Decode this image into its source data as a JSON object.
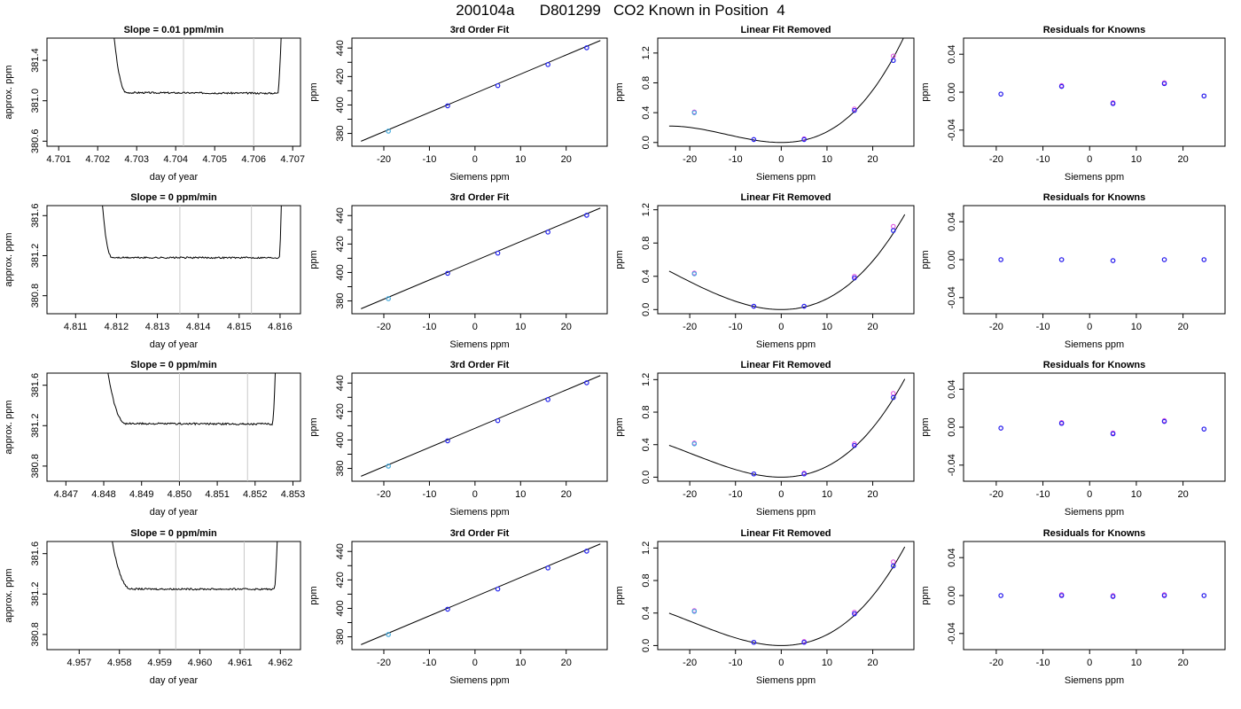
{
  "main_title": "200104a      D801299   CO2 Known in Position  4",
  "colors": {
    "frame": "#000000",
    "trace": "#000000",
    "window_lines": "#c8c8c8",
    "point_blue": "#2222ee",
    "point_magenta": "#dd44dd",
    "point_cyan": "#44aadd"
  },
  "chart_data": [
    {
      "type": "line",
      "row": 1,
      "title": "Slope =  0.01  ppm/min",
      "xlabel": "day of year",
      "ylabel": "approx. ppm",
      "xlim": [
        4.7007,
        4.7072
      ],
      "ylim": [
        380.55,
        381.62
      ],
      "xticks": [
        "4.701",
        "4.702",
        "4.703",
        "4.704",
        "4.705",
        "4.706",
        "4.707"
      ],
      "yticks": [
        "380.6",
        "381.0",
        "381.4"
      ],
      "vlines": [
        4.7042,
        4.706
      ],
      "trace": {
        "x_start": 4.7021,
        "x_rise": 4.70235,
        "x_plateau": 4.70275,
        "x_drop": 4.70662,
        "x_end": 4.70673,
        "plateau": 381.08,
        "slope": -0.006,
        "noise": 0.008
      }
    },
    {
      "type": "scatter",
      "row": 1,
      "title": "3rd Order Fit",
      "xlabel": "Siemens ppm",
      "ylabel": "ppm",
      "xlim": [
        -27,
        29
      ],
      "ylim": [
        371,
        447
      ],
      "xticks": [
        "-20",
        "-10",
        "0",
        "10",
        "20"
      ],
      "yticks": [
        "380",
        "400",
        "420",
        "440"
      ],
      "points": {
        "x": [
          -19,
          -6,
          5,
          16,
          24.5
        ],
        "y": [
          381.6,
          399.4,
          413.6,
          428.4,
          440.2
        ]
      },
      "fit_line": {
        "x": [
          -25,
          27.5
        ],
        "y": [
          374.5,
          445.3
        ]
      }
    },
    {
      "type": "scatter",
      "row": 1,
      "title": "Linear Fit Removed",
      "xlabel": "Siemens ppm",
      "ylabel": "ppm",
      "xlim": [
        -27,
        29
      ],
      "ylim": [
        -0.05,
        1.4
      ],
      "xticks": [
        "-20",
        "-10",
        "0",
        "10",
        "20"
      ],
      "yticks": [
        "0.0",
        "0.4",
        "0.8",
        "1.2"
      ],
      "points": {
        "x": [
          -19,
          -6,
          5,
          16,
          24.5
        ],
        "y": [
          0.4,
          0.04,
          0.04,
          0.43,
          1.1
        ]
      },
      "magenta_points": {
        "x": [
          -19,
          -6,
          5,
          16,
          24.5
        ],
        "y": [
          0.41,
          0.04,
          0.05,
          0.45,
          1.16
        ]
      },
      "curve": {
        "coef": 0.00113,
        "cubic": 3.12e-05,
        "x_range": [
          -24.5,
          27
        ]
      }
    },
    {
      "type": "scatter",
      "row": 1,
      "title": "Residuals for Knowns",
      "xlabel": "Siemens ppm",
      "ylabel": "ppm",
      "xlim": [
        -27,
        29
      ],
      "ylim": [
        -0.057,
        0.057
      ],
      "xticks": [
        "-20",
        "-10",
        "0",
        "10",
        "20"
      ],
      "yticks": [
        "-0.04",
        "0.00",
        "0.04"
      ],
      "points": {
        "x": [
          -19,
          -6,
          5,
          16,
          24.5
        ],
        "y": [
          -0.002,
          0.006,
          -0.012,
          0.009,
          -0.004
        ]
      },
      "magenta_points": {
        "x": [
          -19,
          -6,
          5,
          16,
          24.5
        ],
        "y": [
          -0.002,
          0.007,
          -0.011,
          0.01,
          -0.004
        ]
      }
    },
    {
      "type": "line",
      "row": 2,
      "title": "Slope =  0  ppm/min",
      "xlabel": "day of year",
      "ylabel": "approx. ppm",
      "xlim": [
        4.8103,
        4.8165
      ],
      "ylim": [
        380.62,
        381.7
      ],
      "xticks": [
        "4.811",
        "4.812",
        "4.813",
        "4.814",
        "4.815",
        "4.816"
      ],
      "yticks": [
        "380.8",
        "381.2",
        "381.6"
      ],
      "vlines": [
        4.81355,
        4.8153
      ],
      "trace": {
        "x_start": 4.8113,
        "x_rise": 4.8116,
        "x_plateau": 4.8119,
        "x_drop": 4.81598,
        "x_end": 4.81605,
        "plateau": 381.18,
        "slope": 0.0,
        "noise": 0.008
      }
    },
    {
      "type": "scatter",
      "row": 2,
      "title": "3rd Order Fit",
      "xlabel": "Siemens ppm",
      "ylabel": "ppm",
      "xlim": [
        -27,
        29
      ],
      "ylim": [
        371,
        447
      ],
      "xticks": [
        "-20",
        "-10",
        "0",
        "10",
        "20"
      ],
      "yticks": [
        "380",
        "400",
        "420",
        "440"
      ],
      "points": {
        "x": [
          -19,
          -6,
          5,
          16,
          24.5
        ],
        "y": [
          381.6,
          399.4,
          413.6,
          428.4,
          440.2
        ]
      },
      "fit_line": {
        "x": [
          -25,
          27.5
        ],
        "y": [
          374.5,
          445.3
        ]
      }
    },
    {
      "type": "scatter",
      "row": 2,
      "title": "Linear Fit Removed",
      "xlabel": "Siemens ppm",
      "ylabel": "ppm",
      "xlim": [
        -27,
        29
      ],
      "ylim": [
        -0.05,
        1.25
      ],
      "xticks": [
        "-20",
        "-10",
        "0",
        "10",
        "20"
      ],
      "yticks": [
        "0.0",
        "0.4",
        "0.8",
        "1.2"
      ],
      "points": {
        "x": [
          -19,
          -6,
          5,
          16,
          24.5
        ],
        "y": [
          0.43,
          0.04,
          0.04,
          0.38,
          0.95
        ]
      },
      "magenta_points": {
        "x": [
          -19,
          -6,
          5,
          16,
          24.5
        ],
        "y": [
          0.44,
          0.04,
          0.04,
          0.4,
          1.0
        ]
      },
      "curve": {
        "coef": 0.00115,
        "cubic": 1.55e-05,
        "x_range": [
          -24.5,
          27
        ]
      }
    },
    {
      "type": "scatter",
      "row": 2,
      "title": "Residuals for Knowns",
      "xlabel": "Siemens ppm",
      "ylabel": "ppm",
      "xlim": [
        -27,
        29
      ],
      "ylim": [
        -0.057,
        0.057
      ],
      "xticks": [
        "-20",
        "-10",
        "0",
        "10",
        "20"
      ],
      "yticks": [
        "-0.04",
        "0.00",
        "0.04"
      ],
      "points": {
        "x": [
          -19,
          -6,
          5,
          16,
          24.5
        ],
        "y": [
          0.0,
          0.0,
          -0.001,
          0.0,
          0.0
        ]
      },
      "magenta_points": {
        "x": [
          -19,
          -6,
          5,
          16,
          24.5
        ],
        "y": [
          0.0,
          0.0,
          -0.001,
          0.0,
          0.0
        ]
      }
    },
    {
      "type": "line",
      "row": 3,
      "title": "Slope =  0  ppm/min",
      "xlabel": "day of year",
      "ylabel": "approx. ppm",
      "xlim": [
        4.8465,
        4.8532
      ],
      "ylim": [
        380.65,
        381.72
      ],
      "xticks": [
        "4.847",
        "4.848",
        "4.849",
        "4.850",
        "4.851",
        "4.852",
        "4.853"
      ],
      "yticks": [
        "380.8",
        "381.2",
        "381.6"
      ],
      "vlines": [
        4.85,
        4.8518
      ],
      "trace": {
        "x_start": 4.8477,
        "x_rise": 4.848,
        "x_plateau": 4.8486,
        "x_drop": 4.85246,
        "x_end": 4.85256,
        "plateau": 381.22,
        "slope": -0.004,
        "noise": 0.009
      }
    },
    {
      "type": "scatter",
      "row": 3,
      "title": "3rd Order Fit",
      "xlabel": "Siemens ppm",
      "ylabel": "ppm",
      "xlim": [
        -27,
        29
      ],
      "ylim": [
        371,
        447
      ],
      "xticks": [
        "-20",
        "-10",
        "0",
        "10",
        "20"
      ],
      "yticks": [
        "380",
        "400",
        "420",
        "440"
      ],
      "points": {
        "x": [
          -19,
          -6,
          5,
          16,
          24.5
        ],
        "y": [
          381.6,
          399.4,
          413.6,
          428.4,
          440.2
        ]
      },
      "fit_line": {
        "x": [
          -25,
          27.5
        ],
        "y": [
          374.5,
          445.3
        ]
      }
    },
    {
      "type": "scatter",
      "row": 3,
      "title": "Linear Fit Removed",
      "xlabel": "Siemens ppm",
      "ylabel": "ppm",
      "xlim": [
        -27,
        29
      ],
      "ylim": [
        -0.05,
        1.28
      ],
      "xticks": [
        "-20",
        "-10",
        "0",
        "10",
        "20"
      ],
      "yticks": [
        "0.0",
        "0.4",
        "0.8",
        "1.2"
      ],
      "points": {
        "x": [
          -19,
          -6,
          5,
          16,
          24.5
        ],
        "y": [
          0.41,
          0.04,
          0.04,
          0.39,
          0.98
        ]
      },
      "magenta_points": {
        "x": [
          -19,
          -6,
          5,
          16,
          24.5
        ],
        "y": [
          0.42,
          0.04,
          0.05,
          0.41,
          1.03
        ]
      },
      "curve": {
        "coef": 0.00113,
        "cubic": 1.95e-05,
        "x_range": [
          -24.5,
          27
        ]
      }
    },
    {
      "type": "scatter",
      "row": 3,
      "title": "Residuals for Knowns",
      "xlabel": "Siemens ppm",
      "ylabel": "ppm",
      "xlim": [
        -27,
        29
      ],
      "ylim": [
        -0.057,
        0.057
      ],
      "xticks": [
        "-20",
        "-10",
        "0",
        "10",
        "20"
      ],
      "yticks": [
        "-0.04",
        "0.00",
        "0.04"
      ],
      "points": {
        "x": [
          -19,
          -6,
          5,
          16,
          24.5
        ],
        "y": [
          -0.001,
          0.004,
          -0.007,
          0.006,
          -0.002
        ]
      },
      "magenta_points": {
        "x": [
          -19,
          -6,
          5,
          16,
          24.5
        ],
        "y": [
          -0.001,
          0.005,
          -0.006,
          0.007,
          -0.002
        ]
      }
    },
    {
      "type": "line",
      "row": 4,
      "title": "Slope =  0  ppm/min",
      "xlabel": "day of year",
      "ylabel": "approx. ppm",
      "xlim": [
        4.9562,
        4.9625
      ],
      "ylim": [
        380.65,
        381.72
      ],
      "xticks": [
        "4.957",
        "4.958",
        "4.959",
        "4.960",
        "4.961",
        "4.962"
      ],
      "yticks": [
        "380.8",
        "381.2",
        "381.6"
      ],
      "vlines": [
        4.9594,
        4.9611
      ],
      "trace": {
        "x_start": 4.95737,
        "x_rise": 4.9577,
        "x_plateau": 4.9583,
        "x_drop": 4.96185,
        "x_end": 4.96195,
        "plateau": 381.25,
        "slope": -0.002,
        "noise": 0.008
      }
    },
    {
      "type": "scatter",
      "row": 4,
      "title": "3rd Order Fit",
      "xlabel": "Siemens ppm",
      "ylabel": "ppm",
      "xlim": [
        -27,
        29
      ],
      "ylim": [
        371,
        447
      ],
      "xticks": [
        "-20",
        "-10",
        "0",
        "10",
        "20"
      ],
      "yticks": [
        "380",
        "400",
        "420",
        "440"
      ],
      "points": {
        "x": [
          -19,
          -6,
          5,
          16,
          24.5
        ],
        "y": [
          381.6,
          399.4,
          413.6,
          428.4,
          440.2
        ]
      },
      "fit_line": {
        "x": [
          -25,
          27.5
        ],
        "y": [
          374.5,
          445.3
        ]
      }
    },
    {
      "type": "scatter",
      "row": 4,
      "title": "Linear Fit Removed",
      "xlabel": "Siemens ppm",
      "ylabel": "ppm",
      "xlim": [
        -27,
        29
      ],
      "ylim": [
        -0.05,
        1.28
      ],
      "xticks": [
        "-20",
        "-10",
        "0",
        "10",
        "20"
      ],
      "yticks": [
        "0.0",
        "0.4",
        "0.8",
        "1.2"
      ],
      "points": {
        "x": [
          -19,
          -6,
          5,
          16,
          24.5
        ],
        "y": [
          0.42,
          0.04,
          0.04,
          0.39,
          0.98
        ]
      },
      "magenta_points": {
        "x": [
          -19,
          -6,
          5,
          16,
          24.5
        ],
        "y": [
          0.43,
          0.04,
          0.05,
          0.41,
          1.03
        ]
      },
      "curve": {
        "coef": 0.00114,
        "cubic": 1.95e-05,
        "x_range": [
          -24.5,
          27
        ]
      }
    },
    {
      "type": "scatter",
      "row": 4,
      "title": "Residuals for Knowns",
      "xlabel": "Siemens ppm",
      "ylabel": "ppm",
      "xlim": [
        -27,
        29
      ],
      "ylim": [
        -0.057,
        0.057
      ],
      "xticks": [
        "-20",
        "-10",
        "0",
        "10",
        "20"
      ],
      "yticks": [
        "-0.04",
        "0.00",
        "0.04"
      ],
      "points": {
        "x": [
          -19,
          -6,
          5,
          16,
          24.5
        ],
        "y": [
          0.0,
          0.0,
          -0.001,
          0.0,
          0.0
        ]
      },
      "magenta_points": {
        "x": [
          -19,
          -6,
          5,
          16,
          24.5
        ],
        "y": [
          0.0,
          0.001,
          0.0,
          0.001,
          0.0
        ]
      }
    }
  ]
}
